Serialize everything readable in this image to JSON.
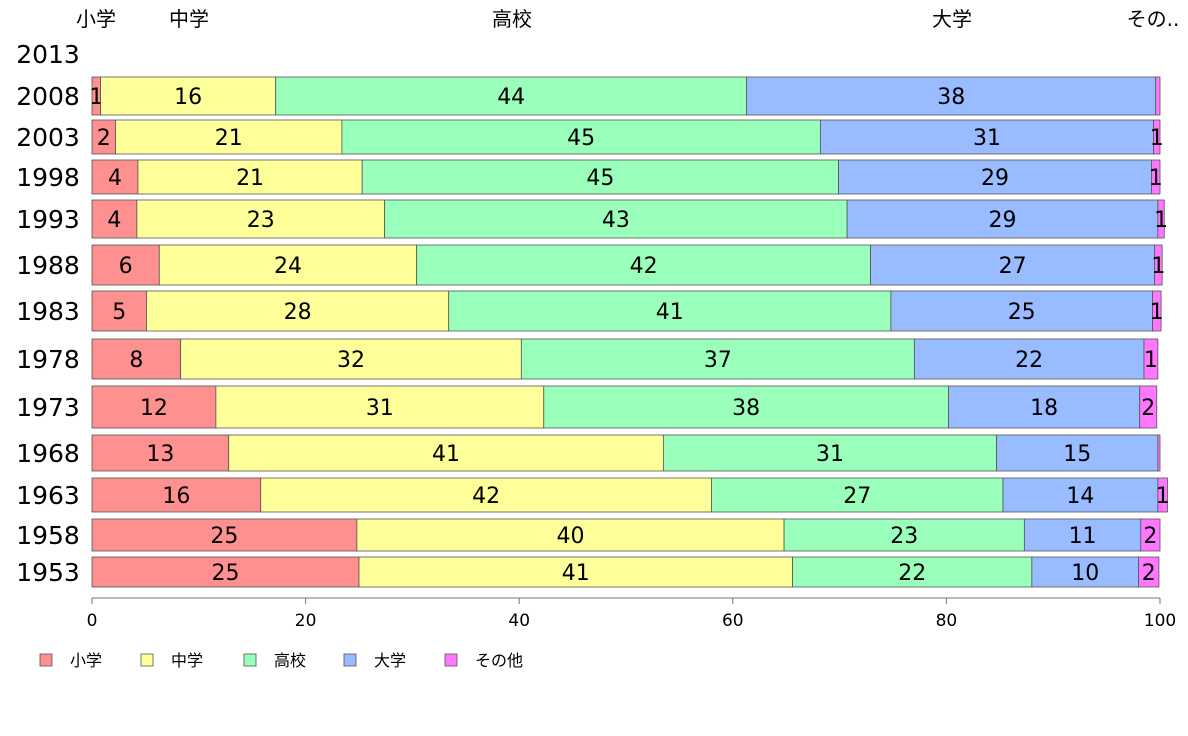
{
  "chart_data": {
    "type": "bar",
    "orientation": "horizontal",
    "stacked": true,
    "categories": [
      "2013",
      "2008",
      "2003",
      "1998",
      "1993",
      "1988",
      "1983",
      "1978",
      "1973",
      "1968",
      "1963",
      "1958",
      "1953"
    ],
    "series": [
      {
        "name": "小学",
        "color": "#ff9090",
        "values": [
          null,
          0.8,
          2.2,
          4.3,
          4.2,
          6.3,
          5.1,
          8.3,
          11.6,
          12.8,
          15.8,
          24.8,
          25.0
        ]
      },
      {
        "name": "中学",
        "color": "#ffff99",
        "values": [
          null,
          16.4,
          21.2,
          21.0,
          23.2,
          24.1,
          28.3,
          31.9,
          30.7,
          40.7,
          42.2,
          40.0,
          40.6
        ]
      },
      {
        "name": "高校",
        "color": "#99ffbb",
        "values": [
          null,
          44.1,
          44.8,
          44.6,
          43.3,
          42.5,
          41.4,
          36.8,
          37.9,
          31.2,
          27.3,
          22.5,
          22.4
        ]
      },
      {
        "name": "大学",
        "color": "#99bbff",
        "values": [
          null,
          38.3,
          31.2,
          29.3,
          29.1,
          26.6,
          24.5,
          21.5,
          17.9,
          15.1,
          14.5,
          10.9,
          10.0
        ]
      },
      {
        "name": "その他",
        "color": "#ff77ff",
        "values": [
          null,
          0.4,
          0.6,
          0.8,
          0.6,
          0.7,
          0.8,
          1.3,
          1.6,
          0.2,
          0.9,
          1.8,
          1.9
        ]
      }
    ],
    "data_labels": {
      "小学": [
        "",
        "1",
        "2",
        "4",
        "4",
        "6",
        "5",
        "8",
        "12",
        "13",
        "16",
        "25",
        "25"
      ],
      "中学": [
        "",
        "16",
        "21",
        "21",
        "23",
        "24",
        "28",
        "32",
        "31",
        "41",
        "42",
        "40",
        "41"
      ],
      "高校": [
        "",
        "44",
        "45",
        "45",
        "43",
        "42",
        "41",
        "37",
        "38",
        "31",
        "27",
        "23",
        "22"
      ],
      "大学": [
        "",
        "38",
        "31",
        "29",
        "29",
        "27",
        "25",
        "22",
        "18",
        "15",
        "14",
        "11",
        "10"
      ],
      "その他": [
        "",
        "",
        "1",
        "1",
        "1",
        "1",
        "1",
        "1",
        "2",
        "",
        "1",
        "2",
        "2"
      ]
    },
    "top_labels": [
      "小学",
      "中学",
      "高校",
      "大学",
      "その.."
    ],
    "xlim": [
      0,
      100
    ],
    "xticks": [
      "0",
      "20",
      "40",
      "60",
      "80",
      "100"
    ],
    "title": "",
    "xlabel": "",
    "ylabel": "",
    "legend": {
      "placement": "bottom-left",
      "entries": [
        "小学",
        "中学",
        "高校",
        "大学",
        "その他"
      ]
    },
    "grid": false
  }
}
